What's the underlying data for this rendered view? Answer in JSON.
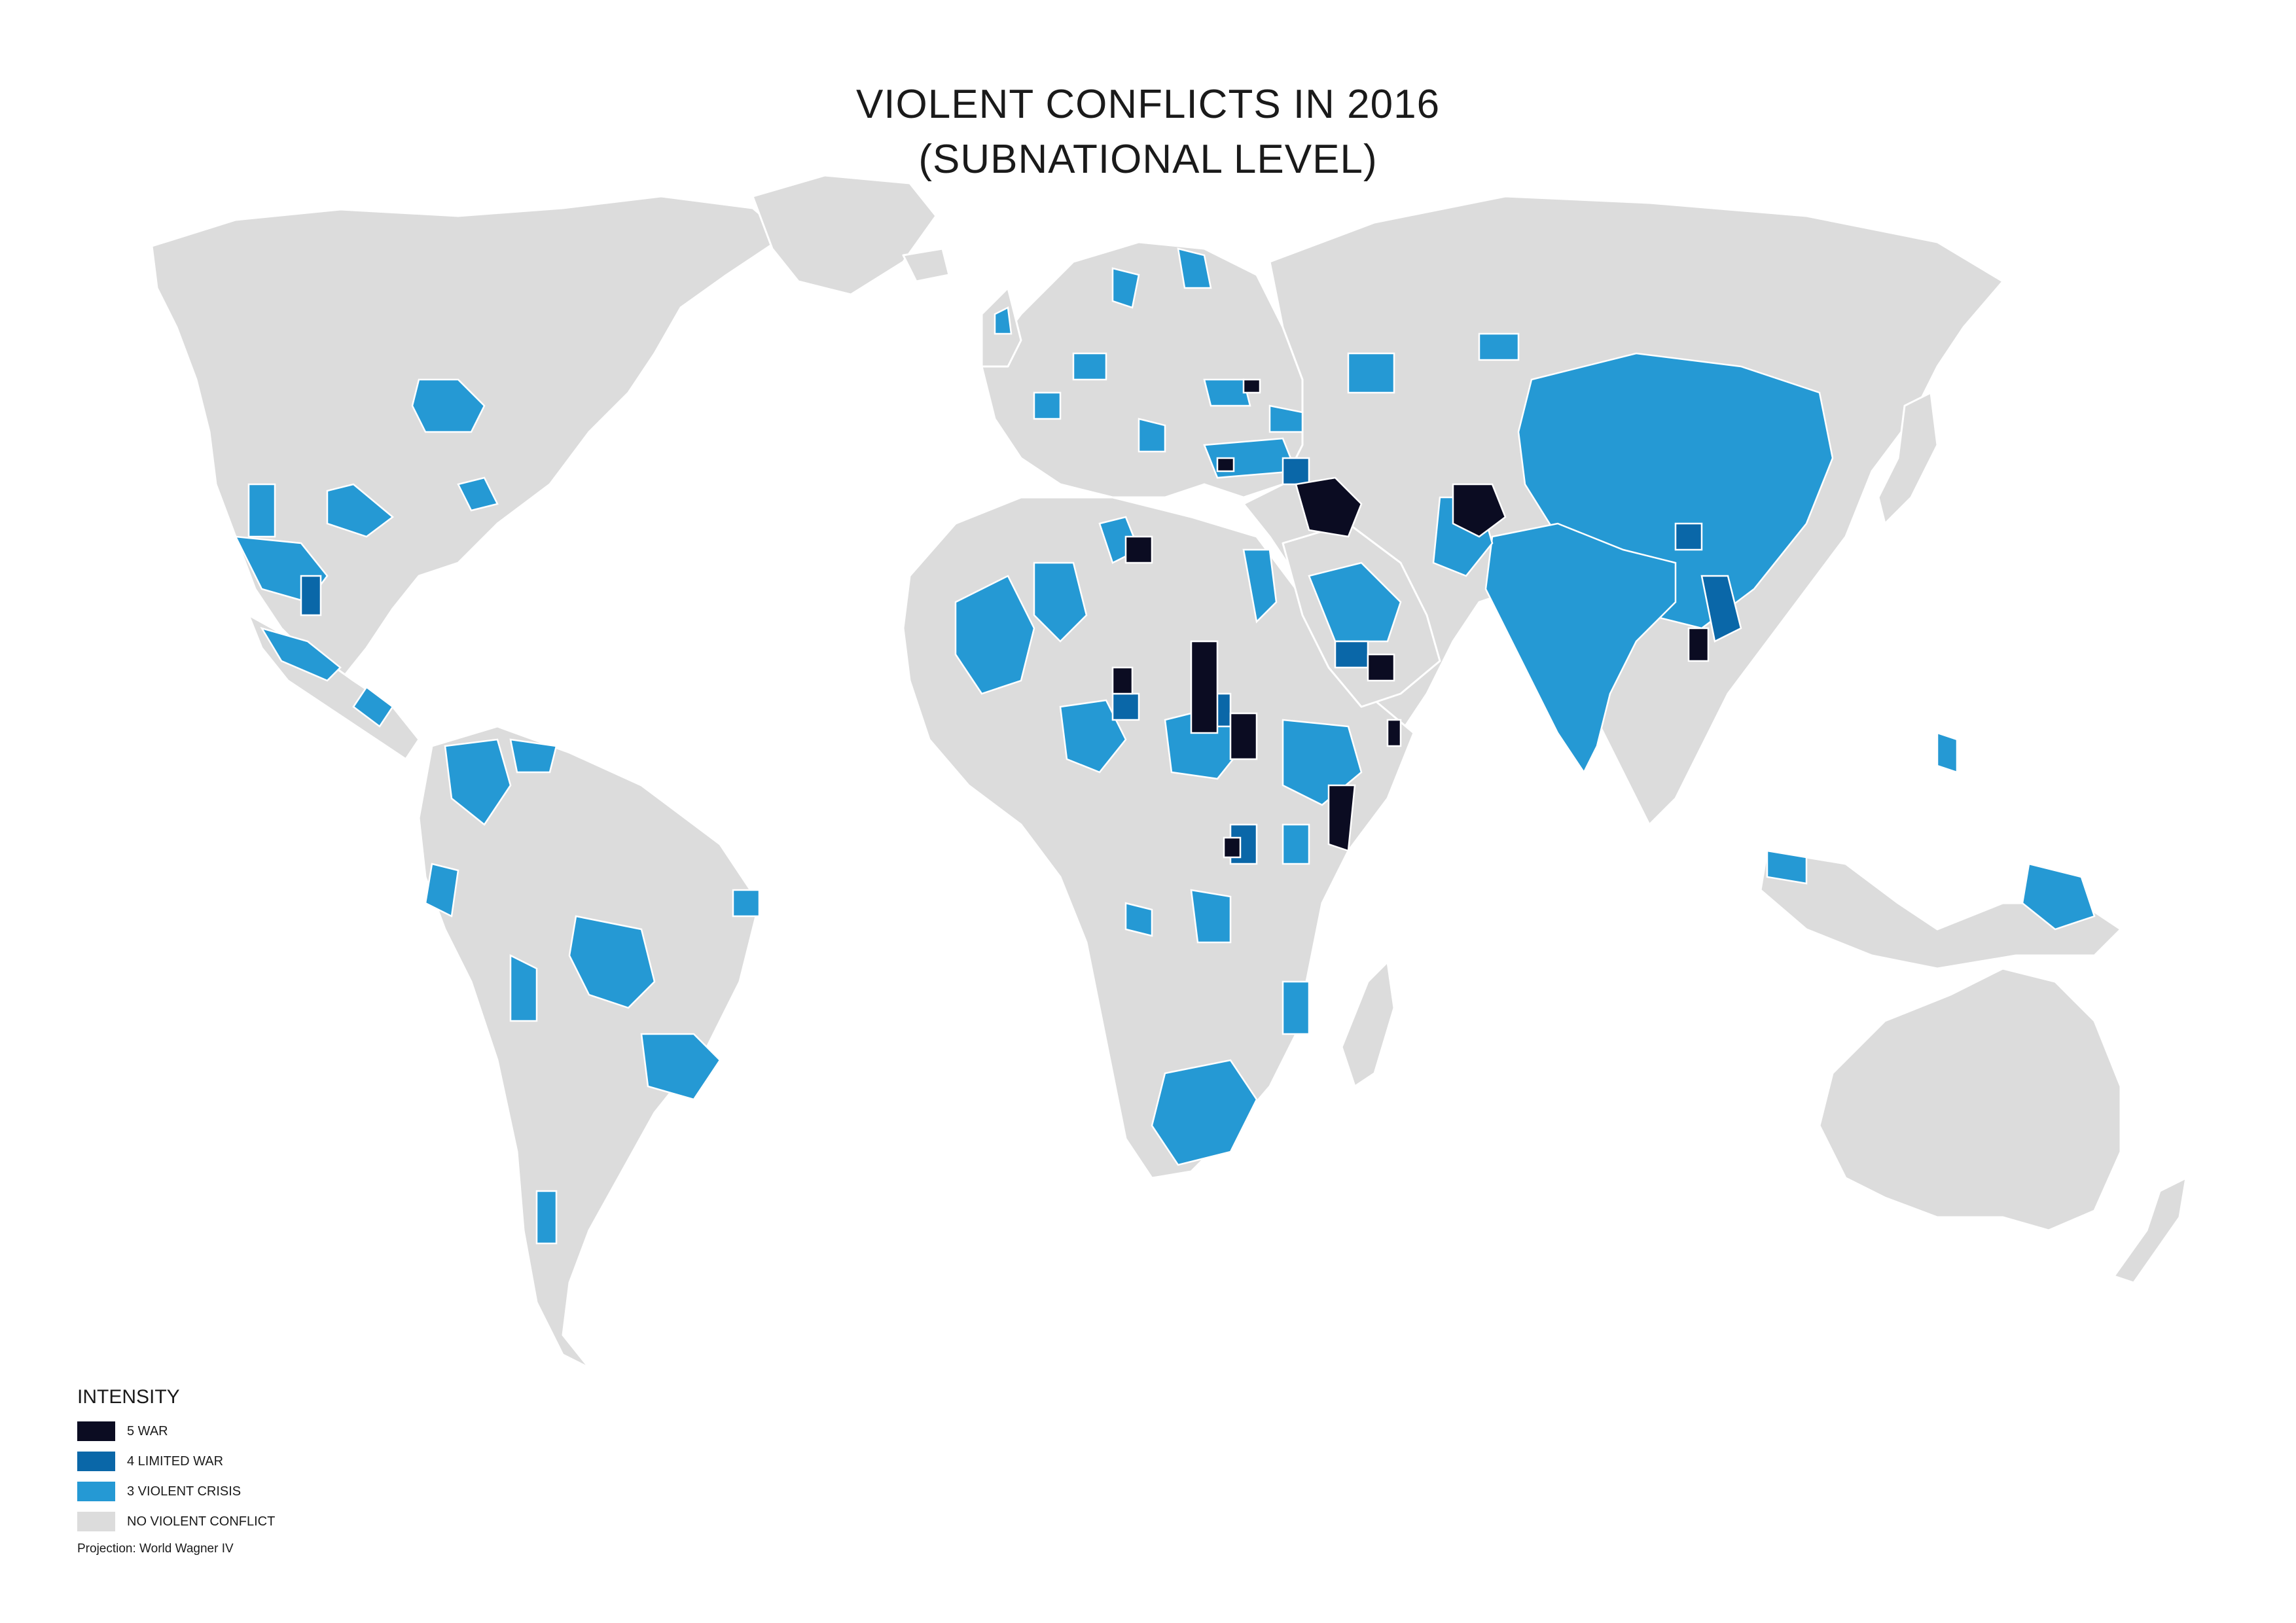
{
  "title": {
    "line1": "VIOLENT CONFLICTS IN 2016",
    "line2": "(SUBNATIONAL LEVEL)"
  },
  "legend": {
    "heading": "INTENSITY",
    "items": [
      {
        "label": "5 WAR",
        "color": "#0b0c22"
      },
      {
        "label": "4 LIMITED WAR",
        "color": "#0a67a8"
      },
      {
        "label": "3 VIOLENT CRISIS",
        "color": "#2599d4"
      },
      {
        "label": "NO VIOLENT CONFLICT",
        "color": "#dcdcdc"
      }
    ]
  },
  "projection_note": "Projection: World Wagner IV",
  "colors": {
    "war": "#0b0c22",
    "limited_war": "#0a67a8",
    "violent_crisis": "#2599d4",
    "no_conflict": "#dcdcdc",
    "background": "#ffffff"
  }
}
